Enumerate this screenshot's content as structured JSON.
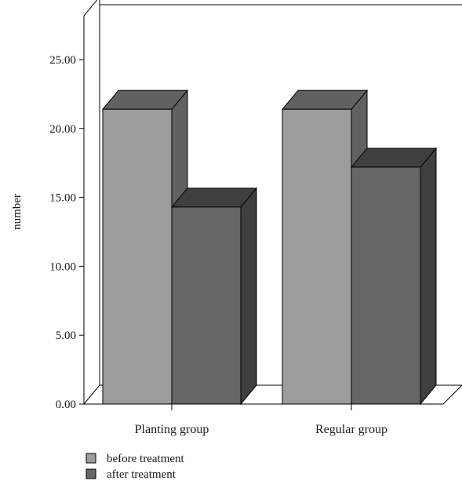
{
  "chart_data": {
    "type": "bar",
    "categories": [
      "Planting group",
      "Regular group"
    ],
    "series": [
      {
        "name": "before treatment",
        "values": [
          21.4,
          21.4
        ],
        "color": "#9c9c9c"
      },
      {
        "name": "after treatment",
        "values": [
          14.3,
          17.2
        ],
        "color": "#666666"
      }
    ],
    "ylabel": "number",
    "xlabel": "",
    "ylim": [
      0,
      25
    ],
    "yticks": [
      "0.00",
      "5.00",
      "10.00",
      "15.00",
      "20.00",
      "25.00"
    ],
    "legend_position": "bottom-left",
    "grid": false,
    "style": "3d"
  }
}
